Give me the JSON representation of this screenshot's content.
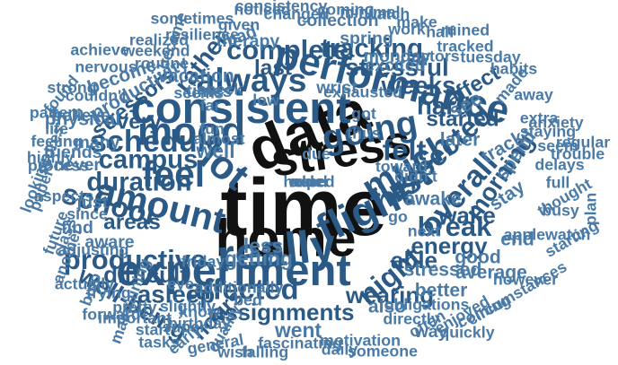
{
  "cloud": {
    "colors": {
      "primary": "#111111",
      "dark": "#2b5a86",
      "mid": "#4a7aa6",
      "light": "#7fa3c4"
    },
    "words": [
      {
        "text": "time",
        "weight": 100,
        "tone": "primary"
      },
      {
        "text": "data",
        "weight": 72,
        "tone": "primary"
      },
      {
        "text": "home",
        "weight": 62,
        "tone": "primary"
      },
      {
        "text": "stress",
        "weight": 55,
        "tone": "primary"
      },
      {
        "text": "really",
        "weight": 52,
        "tone": "dark"
      },
      {
        "text": "experiment",
        "weight": 50,
        "tone": "dark"
      },
      {
        "text": "consistent",
        "weight": 50,
        "tone": "dark"
      },
      {
        "text": "flight",
        "weight": 46,
        "tone": "dark"
      },
      {
        "text": "performance",
        "weight": 44,
        "tone": "dark"
      },
      {
        "text": "mood",
        "weight": 44,
        "tone": "dark"
      },
      {
        "text": "lot",
        "weight": 44,
        "tone": "dark"
      },
      {
        "text": "amount",
        "weight": 40,
        "tone": "dark"
      },
      {
        "text": "feel",
        "weight": 40,
        "tone": "dark"
      },
      {
        "text": "much",
        "weight": 40,
        "tone": "dark"
      },
      {
        "text": "going",
        "weight": 38,
        "tone": "dark"
      },
      {
        "text": "first",
        "weight": 36,
        "tone": "dark"
      },
      {
        "text": "always",
        "weight": 36,
        "tone": "dark"
      },
      {
        "text": "schedule",
        "weight": 32,
        "tone": "dark"
      },
      {
        "text": "overall",
        "weight": 32,
        "tone": "dark"
      },
      {
        "text": "affected",
        "weight": 30,
        "tone": "dark"
      },
      {
        "text": "expected",
        "weight": 30,
        "tone": "dark"
      },
      {
        "text": "school",
        "weight": 30,
        "tone": "dark"
      },
      {
        "text": "night",
        "weight": 30,
        "tone": "dark"
      },
      {
        "text": "felt",
        "weight": 30,
        "tone": "dark"
      },
      {
        "text": "complete",
        "weight": 28,
        "tone": "dark"
      },
      {
        "text": "productive",
        "weight": 28,
        "tone": "dark"
      },
      {
        "text": "break",
        "weight": 28,
        "tone": "dark"
      },
      {
        "text": "duration",
        "weight": 26,
        "tone": "dark"
      },
      {
        "text": "campus",
        "weight": 26,
        "tone": "dark"
      },
      {
        "text": "tracking",
        "weight": 26,
        "tone": "dark"
      },
      {
        "text": "rather",
        "weight": 24,
        "tone": "dark"
      },
      {
        "text": "stressful",
        "weight": 24,
        "tone": "dark"
      },
      {
        "text": "hard",
        "weight": 24,
        "tone": "dark"
      },
      {
        "text": "weeks",
        "weight": 24,
        "tone": "dark"
      },
      {
        "text": "morning",
        "weight": 24,
        "tone": "dark"
      },
      {
        "text": "well-being",
        "weight": 24,
        "tone": "dark"
      },
      {
        "text": "asleep",
        "weight": 24,
        "tone": "dark"
      },
      {
        "text": "difficult",
        "weight": 22,
        "tone": "dark"
      },
      {
        "text": "wake",
        "weight": 22,
        "tone": "dark"
      },
      {
        "text": "able",
        "weight": 22,
        "tone": "dark"
      },
      {
        "text": "wearing",
        "weight": 22,
        "tone": "dark"
      },
      {
        "text": "energy",
        "weight": 22,
        "tone": "dark"
      },
      {
        "text": "assignments",
        "weight": 22,
        "tone": "dark"
      },
      {
        "text": "hours",
        "weight": 20,
        "tone": "dark"
      },
      {
        "text": "areas",
        "weight": 20,
        "tone": "dark"
      },
      {
        "text": "every",
        "weight": 20,
        "tone": "dark"
      },
      {
        "text": "stressors",
        "weight": 20,
        "tone": "dark"
      },
      {
        "text": "last",
        "weight": 20,
        "tone": "dark"
      },
      {
        "text": "started",
        "weight": 20,
        "tone": "dark"
      },
      {
        "text": "affect",
        "weight": 20,
        "tone": "dark"
      },
      {
        "text": "went",
        "weight": 18,
        "tone": "mid"
      },
      {
        "text": "getting",
        "weight": 18,
        "tone": "mid"
      },
      {
        "text": "less",
        "weight": 18,
        "tone": "mid"
      },
      {
        "text": "well",
        "weight": 18,
        "tone": "mid"
      },
      {
        "text": "see",
        "weight": 18,
        "tone": "mid"
      },
      {
        "text": "later",
        "weight": 16,
        "tone": "mid"
      },
      {
        "text": "awake",
        "weight": 16,
        "tone": "mid"
      },
      {
        "text": "stay",
        "weight": 16,
        "tone": "mid"
      },
      {
        "text": "spend",
        "weight": 16,
        "tone": "mid"
      },
      {
        "text": "track",
        "weight": 16,
        "tone": "mid"
      },
      {
        "text": "end",
        "weight": 16,
        "tone": "mid"
      },
      {
        "text": "good",
        "weight": 16,
        "tone": "mid"
      },
      {
        "text": "average",
        "weight": 16,
        "tone": "mid"
      },
      {
        "text": "stressed",
        "weight": 16,
        "tone": "mid"
      },
      {
        "text": "better",
        "weight": 16,
        "tone": "mid"
      },
      {
        "text": "also",
        "weight": 16,
        "tone": "mid"
      },
      {
        "text": "become",
        "weight": 16,
        "tone": "mid"
      },
      {
        "text": "productivity",
        "weight": 16,
        "tone": "mid"
      },
      {
        "text": "vacation",
        "weight": 16,
        "tone": "mid"
      },
      {
        "text": "physical",
        "weight": 16,
        "tone": "mid"
      },
      {
        "text": "believe",
        "weight": 14,
        "tone": "mid"
      },
      {
        "text": "friends",
        "weight": 14,
        "tone": "mid"
      },
      {
        "text": "never",
        "weight": 14,
        "tone": "mid"
      },
      {
        "text": "many",
        "weight": 14,
        "tone": "mid"
      },
      {
        "text": "just",
        "weight": 14,
        "tone": "mid"
      },
      {
        "text": "find",
        "weight": 14,
        "tone": "mid"
      },
      {
        "text": "aware",
        "weight": 14,
        "tone": "mid"
      },
      {
        "text": "spring",
        "weight": 14,
        "tone": "mid"
      },
      {
        "text": "excited",
        "weight": 14,
        "tone": "mid"
      },
      {
        "text": "monday",
        "weight": 14,
        "tone": "mid"
      },
      {
        "text": "collection",
        "weight": 14,
        "tone": "mid"
      },
      {
        "text": "therapy",
        "weight": 14,
        "tone": "mid"
      },
      {
        "text": "bad",
        "weight": 14,
        "tone": "mid"
      },
      {
        "text": "times",
        "weight": 14,
        "tone": "mid"
      },
      {
        "text": "wrist",
        "weight": 14,
        "tone": "mid"
      },
      {
        "text": "way",
        "weight": 14,
        "tone": "mid"
      },
      {
        "text": "directly",
        "weight": 12,
        "tone": "mid"
      },
      {
        "text": "often",
        "weight": 12,
        "tone": "mid"
      },
      {
        "text": "obligations",
        "weight": 12,
        "tone": "mid"
      },
      {
        "text": "daily",
        "weight": 12,
        "tone": "mid"
      },
      {
        "text": "fascinating",
        "weight": 12,
        "tone": "mid"
      },
      {
        "text": "motivation",
        "weight": 12,
        "tone": "mid"
      },
      {
        "text": "someone",
        "weight": 12,
        "tone": "mid"
      },
      {
        "text": "coming",
        "weight": 12,
        "tone": "mid"
      },
      {
        "text": "enjoyed",
        "weight": 12,
        "tone": "mid"
      },
      {
        "text": "quickly",
        "weight": 12,
        "tone": "mid"
      },
      {
        "text": "however",
        "weight": 12,
        "tone": "mid"
      },
      {
        "text": "circumstances",
        "weight": 12,
        "tone": "mid"
      },
      {
        "text": "starting",
        "weight": 12,
        "tone": "mid"
      },
      {
        "text": "plan",
        "weight": 12,
        "tone": "mid"
      },
      {
        "text": "applewatch",
        "weight": 12,
        "tone": "mid"
      },
      {
        "text": "busy",
        "weight": 12,
        "tone": "mid"
      },
      {
        "text": "thought",
        "weight": 12,
        "tone": "mid"
      },
      {
        "text": "full",
        "weight": 12,
        "tone": "mid"
      },
      {
        "text": "delays",
        "weight": 12,
        "tone": "mid"
      },
      {
        "text": "trouble",
        "weight": 12,
        "tone": "mid"
      },
      {
        "text": "seem",
        "weight": 12,
        "tone": "mid"
      },
      {
        "text": "regular",
        "weight": 12,
        "tone": "mid"
      },
      {
        "text": "anxiety",
        "weight": 12,
        "tone": "mid"
      },
      {
        "text": "staying",
        "weight": 12,
        "tone": "mid"
      },
      {
        "text": "extra",
        "weight": 12,
        "tone": "mid"
      },
      {
        "text": "away",
        "weight": 12,
        "tone": "mid"
      },
      {
        "text": "made",
        "weight": 12,
        "tone": "mid"
      },
      {
        "text": "habits",
        "weight": 12,
        "tone": "mid"
      },
      {
        "text": "tuesday",
        "weight": 12,
        "tone": "mid"
      },
      {
        "text": "tracked",
        "weight": 12,
        "tone": "mid"
      },
      {
        "text": "ruined",
        "weight": 12,
        "tone": "mid"
      },
      {
        "text": "half",
        "weight": 12,
        "tone": "mid"
      },
      {
        "text": "factors",
        "weight": 12,
        "tone": "mid"
      },
      {
        "text": "make",
        "weight": 12,
        "tone": "mid"
      },
      {
        "text": "watch",
        "weight": 12,
        "tone": "mid"
      },
      {
        "text": "work",
        "weight": 12,
        "tone": "mid"
      },
      {
        "text": "minimal",
        "weight": 12,
        "tone": "mid"
      },
      {
        "text": "coming",
        "weight": 12,
        "tone": "mid"
      },
      {
        "text": "changed",
        "weight": 12,
        "tone": "mid"
      },
      {
        "text": "consistency",
        "weight": 12,
        "tone": "mid"
      },
      {
        "text": "noticed",
        "weight": 12,
        "tone": "mid"
      },
      {
        "text": "given",
        "weight": 12,
        "tone": "mid"
      },
      {
        "text": "sometimes",
        "weight": 12,
        "tone": "mid"
      },
      {
        "text": "resilience",
        "weight": 12,
        "tone": "mid"
      },
      {
        "text": "realized",
        "weight": 12,
        "tone": "mid"
      },
      {
        "text": "became",
        "weight": 12,
        "tone": "mid"
      },
      {
        "text": "weekend",
        "weight": 12,
        "tone": "mid"
      },
      {
        "text": "routine",
        "weight": 12,
        "tone": "mid"
      },
      {
        "text": "achieve",
        "weight": 12,
        "tone": "mid"
      },
      {
        "text": "nervous",
        "weight": 12,
        "tone": "mid"
      },
      {
        "text": "strong",
        "weight": 12,
        "tone": "mid"
      },
      {
        "text": "couldn't",
        "weight": 12,
        "tone": "mid"
      },
      {
        "text": "found",
        "weight": 12,
        "tone": "mid"
      },
      {
        "text": "pattern",
        "weight": 12,
        "tone": "mid"
      },
      {
        "text": "life",
        "weight": 12,
        "tone": "mid"
      },
      {
        "text": "feeling",
        "weight": 12,
        "tone": "mid"
      },
      {
        "text": "scores",
        "weight": 12,
        "tone": "mid"
      },
      {
        "text": "highly",
        "weight": 12,
        "tone": "mid"
      },
      {
        "text": "process",
        "weight": 12,
        "tone": "mid"
      },
      {
        "text": "looking",
        "weight": 12,
        "tone": "mid"
      },
      {
        "text": "paper",
        "weight": 12,
        "tone": "mid"
      },
      {
        "text": "aspects",
        "weight": 12,
        "tone": "mid"
      },
      {
        "text": "since",
        "weight": 12,
        "tone": "mid"
      },
      {
        "text": "future",
        "weight": 12,
        "tone": "mid"
      },
      {
        "text": "class",
        "weight": 12,
        "tone": "mid"
      },
      {
        "text": "adjusting",
        "weight": 12,
        "tone": "mid"
      },
      {
        "text": "another",
        "weight": 12,
        "tone": "mid"
      },
      {
        "text": "actually",
        "weight": 12,
        "tone": "mid"
      },
      {
        "text": "bujo",
        "weight": 12,
        "tone": "mid"
      },
      {
        "text": "trying",
        "weight": 12,
        "tone": "mid"
      },
      {
        "text": "forward",
        "weight": 12,
        "tone": "mid"
      },
      {
        "text": "maintaining",
        "weight": 12,
        "tone": "mid"
      },
      {
        "text": "pretty",
        "weight": 12,
        "tone": "mid"
      },
      {
        "text": "important",
        "weight": 12,
        "tone": "mid"
      },
      {
        "text": "start",
        "weight": 12,
        "tone": "mid"
      },
      {
        "text": "tasks",
        "weight": 12,
        "tone": "mid"
      },
      {
        "text": "early",
        "weight": 12,
        "tone": "mid"
      },
      {
        "text": "general",
        "weight": 12,
        "tone": "mid"
      },
      {
        "text": "wish",
        "weight": 12,
        "tone": "mid"
      },
      {
        "text": "falling",
        "weight": 12,
        "tone": "mid"
      },
      {
        "text": "quality",
        "weight": 12,
        "tone": "mid"
      },
      {
        "text": "slightly",
        "weight": 12,
        "tone": "mid"
      },
      {
        "text": "know",
        "weight": 12,
        "tone": "mid"
      },
      {
        "text": "additionally",
        "weight": 12,
        "tone": "mid"
      },
      {
        "text": "birthday",
        "weight": 12,
        "tone": "mid"
      },
      {
        "text": "super",
        "weight": 12,
        "tone": "mid"
      },
      {
        "text": "bed",
        "weight": 12,
        "tone": "mid"
      },
      {
        "text": "eye",
        "weight": 12,
        "tone": "mid"
      },
      {
        "text": "friday",
        "weight": 12,
        "tone": "mid"
      },
      {
        "text": "almost",
        "weight": 12,
        "tone": "mid"
      },
      {
        "text": "fun",
        "weight": 12,
        "tone": "mid"
      },
      {
        "text": "far",
        "weight": 12,
        "tone": "mid"
      },
      {
        "text": "check",
        "weight": 12,
        "tone": "mid"
      },
      {
        "text": "seems",
        "weight": 12,
        "tone": "mid"
      },
      {
        "text": "low",
        "weight": 12,
        "tone": "mid"
      },
      {
        "text": "exhausted",
        "weight": 12,
        "tone": "mid"
      },
      {
        "text": "got",
        "weight": 12,
        "tone": "mid"
      },
      {
        "text": "thus",
        "weight": 12,
        "tone": "mid"
      },
      {
        "text": "due",
        "weight": 12,
        "tone": "mid"
      },
      {
        "text": "toward",
        "weight": 12,
        "tone": "mid"
      },
      {
        "text": "didn't",
        "weight": 12,
        "tone": "mid"
      },
      {
        "text": "go",
        "weight": 12,
        "tone": "mid"
      },
      {
        "text": "next",
        "weight": 12,
        "tone": "mid"
      },
      {
        "text": "helped",
        "weight": 12,
        "tone": "mid"
      },
      {
        "text": "order",
        "weight": 12,
        "tone": "mid"
      },
      {
        "text": "need",
        "weight": 12,
        "tone": "mid"
      }
    ]
  }
}
